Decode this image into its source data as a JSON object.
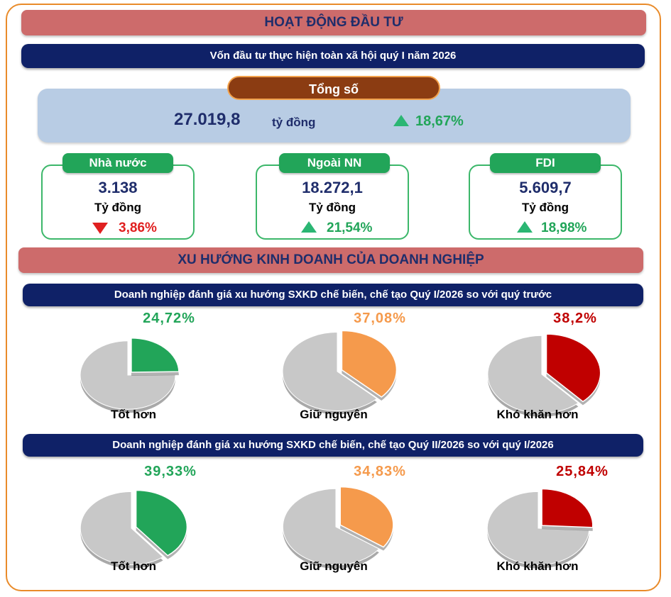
{
  "header": {
    "investment_title": "HOẠT ĐỘNG ĐẦU TƯ",
    "investment_subtitle": "Vốn đầu tư thực hiện toàn xã hội quý I năm 2026",
    "total_label": "Tổng số",
    "total_value": "27.019,8",
    "total_unit": "tỷ đồng",
    "total_change": "18,67%"
  },
  "cards": [
    {
      "label": "Nhà nước",
      "value": "3.138",
      "unit": "Tỷ đồng",
      "change": "3,86%",
      "direction": "down"
    },
    {
      "label": "Ngoài NN",
      "value": "18.272,1",
      "unit": "Tỷ đồng",
      "change": "21,54%",
      "direction": "up"
    },
    {
      "label": "FDI",
      "value": "5.609,7",
      "unit": "Tỷ đồng",
      "change": "18,98%",
      "direction": "up"
    }
  ],
  "trend": {
    "title": "XU HƯỚNG KINH DOANH CỦA DOANH NGHIỆP"
  },
  "colors": {
    "good": "#22a559",
    "same": "#f59a4c",
    "hard": "#c00000",
    "rest": "#c8c8c8"
  },
  "chart_data": [
    {
      "type": "pie",
      "title": "Doanh nghiệp đánh giá xu hướng SXKD chế biến, chế tạo Quý I/2026 so với quý trước",
      "categories": [
        "Tốt hơn",
        "Giữ nguyên",
        "Khó khăn hơn"
      ],
      "values": [
        24.72,
        37.08,
        38.2
      ],
      "labels": [
        "24,72%",
        "37,08%",
        "38,2%"
      ]
    },
    {
      "type": "pie",
      "title": "Doanh nghiệp đánh giá xu hướng SXKD chế biến, chế tạo Quý II/2026 so với quý I/2026",
      "categories": [
        "Tốt hơn",
        "Giữ nguyên",
        "Khó khăn hơn"
      ],
      "values": [
        39.33,
        34.83,
        25.84
      ],
      "labels": [
        "39,33%",
        "34,83%",
        "25,84%"
      ]
    }
  ]
}
